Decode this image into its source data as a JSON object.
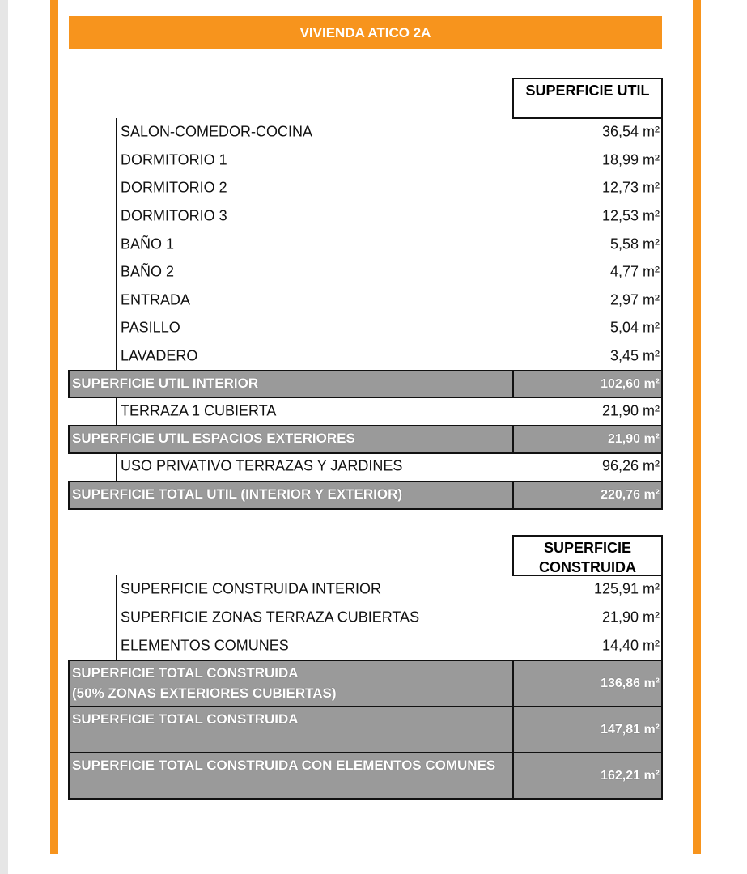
{
  "title": "VIVIENDA ATICO 2A",
  "sections": [
    {
      "header": "SUPERFICIE UTIL",
      "blocks": [
        {
          "items": [
            [
              "SALON-COMEDOR-COCINA",
              "36,54 m²"
            ],
            [
              "DORMITORIO 1",
              "18,99 m²"
            ],
            [
              "DORMITORIO 2",
              "12,73 m²"
            ],
            [
              "DORMITORIO 3",
              "12,53 m²"
            ],
            [
              "BAÑO 1",
              "5,58 m²"
            ],
            [
              "BAÑO 2",
              "4,77 m²"
            ],
            [
              "ENTRADA",
              "2,97 m²"
            ],
            [
              "PASILLO",
              "5,04 m²"
            ],
            [
              "LAVADERO",
              "3,45 m²"
            ]
          ],
          "totals": [
            [
              "SUPERFICIE UTIL INTERIOR",
              "102,60 m²"
            ]
          ]
        },
        {
          "items": [
            [
              "TERRAZA 1 CUBIERTA",
              "21,90 m²"
            ]
          ],
          "totals": [
            [
              "SUPERFICIE UTIL ESPACIOS EXTERIORES",
              "21,90 m²"
            ]
          ]
        },
        {
          "items": [
            [
              "USO PRIVATIVO TERRAZAS Y JARDINES",
              "96,26 m²"
            ]
          ],
          "totals": [
            [
              "SUPERFICIE TOTAL UTIL (INTERIOR Y EXTERIOR)",
              "220,76 m²"
            ]
          ]
        }
      ]
    },
    {
      "header": "SUPERFICIE CONSTRUIDA",
      "blocks": [
        {
          "items": [
            [
              "SUPERFICIE CONSTRUIDA INTERIOR",
              "125,91 m²"
            ],
            [
              "SUPERFICIE ZONAS TERRAZA CUBIERTAS",
              "21,90 m²"
            ],
            [
              "ELEMENTOS COMUNES",
              "14,40 m²"
            ]
          ],
          "totals": [
            [
              "SUPERFICIE TOTAL CONSTRUIDA\n(50% ZONAS EXTERIORES CUBIERTAS)",
              "136,86 m²"
            ],
            [
              "SUPERFICIE TOTAL CONSTRUIDA",
              "147,81 m²"
            ],
            [
              "SUPERFICIE TOTAL CONSTRUIDA CON ELEMENTOS COMUNES",
              "162,21 m²"
            ]
          ]
        }
      ]
    }
  ]
}
